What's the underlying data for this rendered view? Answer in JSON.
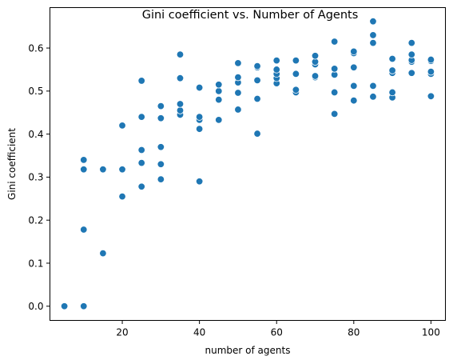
{
  "chart_data": {
    "type": "scatter",
    "title": "Gini coefficient vs. Number of Agents",
    "xlabel": "number of agents",
    "ylabel": "Gini coefficient",
    "xlim": [
      1.25,
      103.75
    ],
    "ylim": [
      -0.033,
      0.694
    ],
    "xticks": [
      20,
      40,
      60,
      80,
      100
    ],
    "yticks": [
      0.0,
      0.1,
      0.2,
      0.3,
      0.4,
      0.5,
      0.6
    ],
    "grid": false,
    "color": "#1f77b4",
    "points": [
      [
        5,
        0.0
      ],
      [
        10,
        0.0
      ],
      [
        10,
        0.178
      ],
      [
        10,
        0.318
      ],
      [
        10,
        0.34
      ],
      [
        15,
        0.123
      ],
      [
        15,
        0.318
      ],
      [
        20,
        0.255
      ],
      [
        20,
        0.318
      ],
      [
        20,
        0.42
      ],
      [
        25,
        0.278
      ],
      [
        25,
        0.333
      ],
      [
        25,
        0.363
      ],
      [
        25,
        0.44
      ],
      [
        25,
        0.524
      ],
      [
        30,
        0.295
      ],
      [
        30,
        0.33
      ],
      [
        30,
        0.37
      ],
      [
        30,
        0.437
      ],
      [
        30,
        0.465
      ],
      [
        35,
        0.445
      ],
      [
        35,
        0.455
      ],
      [
        35,
        0.47
      ],
      [
        35,
        0.53
      ],
      [
        35,
        0.585
      ],
      [
        40,
        0.29
      ],
      [
        40,
        0.412
      ],
      [
        40,
        0.433
      ],
      [
        40,
        0.44
      ],
      [
        40,
        0.508
      ],
      [
        45,
        0.433
      ],
      [
        45,
        0.48
      ],
      [
        45,
        0.5
      ],
      [
        45,
        0.515
      ],
      [
        50,
        0.457
      ],
      [
        50,
        0.496
      ],
      [
        50,
        0.52
      ],
      [
        50,
        0.532
      ],
      [
        50,
        0.565
      ],
      [
        55,
        0.401
      ],
      [
        55,
        0.482
      ],
      [
        55,
        0.525
      ],
      [
        55,
        0.555
      ],
      [
        55,
        0.558
      ],
      [
        60,
        0.518
      ],
      [
        60,
        0.53
      ],
      [
        60,
        0.54
      ],
      [
        60,
        0.55
      ],
      [
        60,
        0.571
      ],
      [
        65,
        0.497
      ],
      [
        65,
        0.503
      ],
      [
        65,
        0.54
      ],
      [
        65,
        0.571
      ],
      [
        70,
        0.532
      ],
      [
        70,
        0.535
      ],
      [
        70,
        0.562
      ],
      [
        70,
        0.568
      ],
      [
        70,
        0.582
      ],
      [
        75,
        0.447
      ],
      [
        75,
        0.497
      ],
      [
        75,
        0.538
      ],
      [
        75,
        0.552
      ],
      [
        75,
        0.615
      ],
      [
        80,
        0.478
      ],
      [
        80,
        0.512
      ],
      [
        80,
        0.555
      ],
      [
        80,
        0.588
      ],
      [
        80,
        0.592
      ],
      [
        85,
        0.487
      ],
      [
        85,
        0.512
      ],
      [
        85,
        0.612
      ],
      [
        85,
        0.63
      ],
      [
        85,
        0.662
      ],
      [
        90,
        0.485
      ],
      [
        90,
        0.497
      ],
      [
        90,
        0.542
      ],
      [
        90,
        0.548
      ],
      [
        90,
        0.575
      ],
      [
        95,
        0.542
      ],
      [
        95,
        0.568
      ],
      [
        95,
        0.572
      ],
      [
        95,
        0.585
      ],
      [
        95,
        0.612
      ],
      [
        100,
        0.488
      ],
      [
        100,
        0.54
      ],
      [
        100,
        0.545
      ],
      [
        100,
        0.57
      ],
      [
        100,
        0.573
      ]
    ]
  }
}
